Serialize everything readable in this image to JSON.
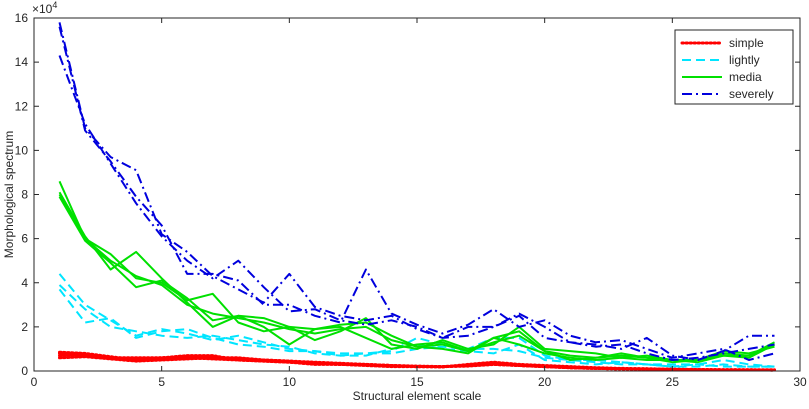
{
  "chart_data": {
    "type": "line",
    "title": "",
    "xlabel": "Structural element scale",
    "ylabel": "Morphological spectrum",
    "xlim": [
      0,
      30
    ],
    "ylim": [
      0,
      16
    ],
    "xticks": [
      0,
      5,
      10,
      15,
      20,
      25,
      30
    ],
    "yticks": [
      0,
      2,
      4,
      6,
      8,
      10,
      12,
      14,
      16
    ],
    "y_exponent_label": "×10^4",
    "grid": false,
    "legend": {
      "position": "top-right",
      "entries": [
        {
          "label": "simple",
          "color": "#ff0000",
          "style": "dotted"
        },
        {
          "label": "lightly",
          "color": "#00e5ff",
          "style": "dashed"
        },
        {
          "label": "media",
          "color": "#00e000",
          "style": "solid"
        },
        {
          "label": "severely",
          "color": "#0000dd",
          "style": "dashdot"
        }
      ]
    },
    "x": [
      1,
      2,
      3,
      4,
      5,
      6,
      7,
      8,
      9,
      10,
      11,
      12,
      13,
      14,
      15,
      16,
      17,
      18,
      19,
      20,
      21,
      22,
      23,
      24,
      25,
      26,
      27,
      28,
      29
    ],
    "series": [
      {
        "group": "simple",
        "values": [
          0.85,
          0.8,
          0.65,
          0.5,
          0.55,
          0.6,
          0.65,
          0.55,
          0.5,
          0.45,
          0.35,
          0.3,
          0.3,
          0.25,
          0.2,
          0.2,
          0.25,
          0.35,
          0.25,
          0.2,
          0.15,
          0.12,
          0.1,
          0.1,
          0.08,
          0.06,
          0.05,
          0.05,
          0.05
        ]
      },
      {
        "group": "simple",
        "values": [
          0.7,
          0.75,
          0.6,
          0.55,
          0.6,
          0.7,
          0.7,
          0.5,
          0.45,
          0.4,
          0.3,
          0.3,
          0.25,
          0.2,
          0.2,
          0.18,
          0.3,
          0.4,
          0.3,
          0.25,
          0.2,
          0.15,
          0.12,
          0.1,
          0.08,
          0.07,
          0.06,
          0.05,
          0.05
        ]
      },
      {
        "group": "simple",
        "values": [
          0.6,
          0.65,
          0.55,
          0.45,
          0.5,
          0.55,
          0.6,
          0.6,
          0.5,
          0.45,
          0.4,
          0.35,
          0.3,
          0.25,
          0.2,
          0.2,
          0.25,
          0.3,
          0.25,
          0.2,
          0.15,
          0.12,
          0.1,
          0.08,
          0.07,
          0.06,
          0.05,
          0.05,
          0.04
        ]
      },
      {
        "group": "simple",
        "values": [
          0.8,
          0.7,
          0.6,
          0.6,
          0.6,
          0.6,
          0.55,
          0.5,
          0.45,
          0.4,
          0.35,
          0.3,
          0.28,
          0.25,
          0.22,
          0.2,
          0.22,
          0.3,
          0.25,
          0.2,
          0.15,
          0.12,
          0.1,
          0.08,
          0.07,
          0.06,
          0.05,
          0.05,
          0.04
        ]
      },
      {
        "group": "lightly",
        "values": [
          4.4,
          3.0,
          2.3,
          1.6,
          1.9,
          1.7,
          1.4,
          1.6,
          1.3,
          1.0,
          0.9,
          0.8,
          0.8,
          0.9,
          1.5,
          1.2,
          1.0,
          1.0,
          0.9,
          0.6,
          0.5,
          0.4,
          0.3,
          0.3,
          0.2,
          0.3,
          0.5,
          0.3,
          0.2
        ]
      },
      {
        "group": "lightly",
        "values": [
          3.9,
          2.8,
          2.0,
          1.8,
          1.6,
          1.5,
          1.6,
          1.4,
          1.2,
          1.1,
          0.8,
          0.7,
          0.7,
          1.0,
          1.2,
          1.0,
          0.9,
          0.8,
          1.2,
          0.5,
          0.4,
          0.3,
          0.4,
          0.3,
          0.2,
          0.2,
          0.3,
          0.2,
          0.2
        ]
      },
      {
        "group": "lightly",
        "values": [
          3.7,
          2.2,
          2.4,
          1.5,
          1.8,
          1.9,
          1.5,
          1.2,
          1.1,
          0.9,
          0.9,
          0.7,
          0.8,
          0.8,
          1.0,
          1.1,
          1.0,
          1.5,
          1.5,
          0.7,
          0.5,
          0.5,
          0.4,
          0.3,
          0.3,
          0.3,
          0.2,
          0.2,
          0.2
        ]
      },
      {
        "group": "media",
        "values": [
          8.6,
          6.0,
          5.3,
          4.2,
          4.0,
          3.2,
          3.5,
          2.2,
          1.8,
          2.0,
          1.9,
          2.0,
          1.5,
          1.0,
          1.2,
          1.3,
          0.9,
          1.5,
          1.2,
          0.8,
          0.6,
          0.5,
          0.6,
          0.5,
          0.5,
          0.5,
          0.8,
          0.7,
          1.3
        ]
      },
      {
        "group": "media",
        "values": [
          8.1,
          6.1,
          4.6,
          5.4,
          4.2,
          3.1,
          2.0,
          2.5,
          2.4,
          2.0,
          1.4,
          1.8,
          2.4,
          1.2,
          1.0,
          1.4,
          1.0,
          1.2,
          2.0,
          1.0,
          0.9,
          0.8,
          0.6,
          0.7,
          0.5,
          0.4,
          0.7,
          0.6,
          1.2
        ]
      },
      {
        "group": "media",
        "values": [
          7.9,
          5.9,
          4.9,
          3.8,
          4.1,
          3.3,
          2.3,
          2.5,
          2.0,
          1.2,
          1.9,
          2.1,
          2.2,
          1.6,
          1.1,
          1.0,
          0.8,
          1.5,
          1.8,
          0.9,
          0.5,
          0.6,
          0.8,
          0.6,
          0.4,
          0.5,
          0.9,
          0.8,
          1.1
        ]
      },
      {
        "group": "media",
        "values": [
          8.0,
          6.0,
          5.0,
          4.3,
          3.9,
          3.0,
          2.6,
          2.4,
          2.2,
          1.9,
          1.7,
          1.9,
          2.0,
          1.4,
          1.1,
          1.2,
          0.9,
          1.3,
          1.6,
          0.9,
          0.7,
          0.6,
          0.7,
          0.6,
          0.5,
          0.5,
          0.7,
          0.7,
          1.2
        ]
      },
      {
        "group": "severely",
        "values": [
          15.8,
          11.0,
          9.7,
          9.1,
          6.2,
          5.4,
          4.3,
          3.7,
          3.1,
          4.4,
          2.9,
          2.5,
          2.3,
          2.5,
          1.9,
          1.5,
          1.6,
          2.0,
          2.5,
          1.5,
          1.3,
          1.2,
          1.0,
          1.5,
          0.7,
          0.5,
          0.9,
          1.6,
          1.6
        ]
      },
      {
        "group": "severely",
        "values": [
          15.6,
          10.9,
          9.5,
          7.9,
          6.6,
          4.4,
          4.4,
          4.1,
          3.0,
          3.0,
          2.5,
          2.2,
          4.6,
          2.6,
          2.1,
          1.7,
          2.1,
          2.8,
          2.0,
          2.3,
          1.6,
          1.3,
          1.4,
          1.0,
          0.6,
          0.8,
          1.0,
          0.5,
          0.8
        ]
      },
      {
        "group": "severely",
        "values": [
          14.3,
          11.2,
          9.4,
          7.6,
          6.1,
          5.0,
          4.2,
          5.0,
          3.8,
          2.7,
          2.8,
          2.3,
          2.1,
          2.3,
          2.0,
          1.5,
          2.0,
          2.0,
          2.6,
          2.0,
          1.3,
          1.1,
          1.2,
          0.8,
          0.5,
          0.6,
          0.8,
          1.0,
          1.2
        ]
      }
    ],
    "colors": {
      "simple": "#ff0000",
      "lightly": "#00e5ff",
      "media": "#00e000",
      "severely": "#0000dd",
      "axis": "#262626"
    }
  }
}
